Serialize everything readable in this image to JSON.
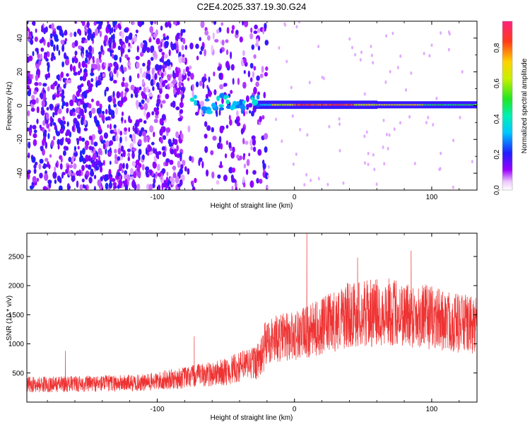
{
  "title": "C2E4.2025.337.19.30.G24",
  "chart_data": [
    {
      "type": "heatmap",
      "xlabel": "Height of straight line (km)",
      "ylabel": "Frequency (Hz)",
      "xlim": [
        -195,
        133
      ],
      "ylim": [
        -50,
        50
      ],
      "xticks": [
        -100,
        0,
        100
      ],
      "yticks": [
        -40,
        -20,
        0,
        20,
        40
      ],
      "colorbar": {
        "label": "Normalized spectral amplitude",
        "range": [
          0.0,
          0.95
        ],
        "ticks": [
          "0.0",
          "0.2",
          "0.4",
          "0.6",
          "0.8"
        ],
        "colormap": "rainbow (magenta-blue-cyan-green-yellow-red)"
      },
      "description_regions": [
        {
          "x": [
            -195,
            -20
          ],
          "pattern": "broadband noise across all frequencies"
        },
        {
          "x": [
            -75,
            -25
          ],
          "pattern": "emerging signal near 0 Hz with blue/cyan blobs"
        },
        {
          "x": [
            -25,
            133
          ],
          "pattern": "stable narrow line at ~0 Hz, peak amplitude 0.8-0.95 between 0 and 40 km"
        }
      ]
    },
    {
      "type": "line",
      "xlabel": "Height of straight line (km)",
      "ylabel": "SNR (10 * v/v)",
      "xlim": [
        -195,
        133
      ],
      "ylim": [
        0,
        2900
      ],
      "xticks": [
        -100,
        0,
        100
      ],
      "yticks": [
        500,
        1000,
        1500,
        2000,
        2500
      ],
      "color": "#ee3333",
      "trend": {
        "x": [
          -195,
          -110,
          -80,
          -50,
          -25,
          -20,
          10,
          40,
          70,
          100,
          133
        ],
        "y": [
          300,
          330,
          420,
          520,
          720,
          1050,
          1200,
          1500,
          1550,
          1450,
          1300
        ]
      },
      "peaks": [
        {
          "x": 9,
          "y": 2900
        },
        {
          "x": 85,
          "y": 2600
        },
        {
          "x": 46,
          "y": 2480
        },
        {
          "x": -73,
          "y": 1130
        },
        {
          "x": -167,
          "y": 880
        }
      ]
    }
  ]
}
